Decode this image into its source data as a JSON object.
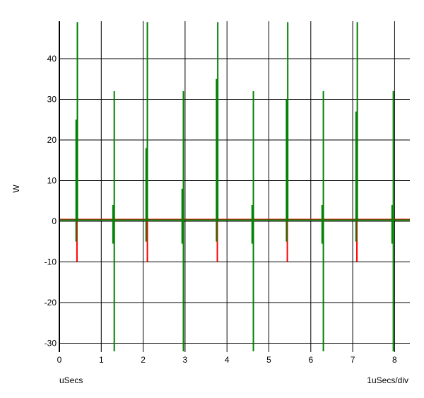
{
  "chart_data": {
    "type": "line",
    "title": "",
    "ylabel": "W",
    "xlabel": "uSecs",
    "scale_label": "1uSecs/div",
    "xlim": [
      0,
      8.4
    ],
    "ylim": [
      -32,
      49
    ],
    "x_ticks": [
      0,
      1,
      2,
      3,
      4,
      5,
      6,
      7,
      8
    ],
    "y_ticks": [
      -30,
      -20,
      -10,
      0,
      10,
      20,
      30,
      40
    ],
    "grid": true,
    "legend": "none",
    "series": [
      {
        "color": "#ff0000",
        "baseline": 0.4,
        "spikes": [
          {
            "x": 0.42,
            "top": 1.5,
            "bottom": -10
          },
          {
            "x": 1.3,
            "top": 1.5,
            "bottom": 0
          },
          {
            "x": 2.1,
            "top": 1.5,
            "bottom": -10
          },
          {
            "x": 2.95,
            "top": 1.5,
            "bottom": 0
          },
          {
            "x": 3.77,
            "top": 1.5,
            "bottom": -10
          },
          {
            "x": 4.62,
            "top": 1.5,
            "bottom": 0
          },
          {
            "x": 5.44,
            "top": 1.5,
            "bottom": -10
          },
          {
            "x": 6.29,
            "top": 1.5,
            "bottom": 0
          },
          {
            "x": 7.1,
            "top": 1.5,
            "bottom": -10
          },
          {
            "x": 7.96,
            "top": 1.5,
            "bottom": 0
          }
        ]
      },
      {
        "color": "#008000",
        "baseline": 0.3,
        "spikes": [
          {
            "x": 0.4,
            "top": 25,
            "bottom": -5
          },
          {
            "x": 0.43,
            "top": 49,
            "bottom": 0
          },
          {
            "x": 1.28,
            "top": 4,
            "bottom": -5.5
          },
          {
            "x": 1.31,
            "top": 32,
            "bottom": -32
          },
          {
            "x": 2.07,
            "top": 18,
            "bottom": -5
          },
          {
            "x": 2.1,
            "top": 49,
            "bottom": 0
          },
          {
            "x": 2.93,
            "top": 8,
            "bottom": -5.5
          },
          {
            "x": 2.96,
            "top": 32,
            "bottom": -32
          },
          {
            "x": 3.75,
            "top": 35,
            "bottom": -5
          },
          {
            "x": 3.78,
            "top": 49,
            "bottom": 0
          },
          {
            "x": 4.6,
            "top": 4,
            "bottom": -5.5
          },
          {
            "x": 4.63,
            "top": 32,
            "bottom": -32
          },
          {
            "x": 5.42,
            "top": 30,
            "bottom": -5
          },
          {
            "x": 5.45,
            "top": 49,
            "bottom": 0
          },
          {
            "x": 6.27,
            "top": 4,
            "bottom": -5.5
          },
          {
            "x": 6.3,
            "top": 32,
            "bottom": -32
          },
          {
            "x": 7.08,
            "top": 27,
            "bottom": -5
          },
          {
            "x": 7.11,
            "top": 49,
            "bottom": 0
          },
          {
            "x": 7.94,
            "top": 4,
            "bottom": -5.5
          },
          {
            "x": 7.97,
            "top": 32,
            "bottom": -32
          }
        ]
      }
    ]
  }
}
